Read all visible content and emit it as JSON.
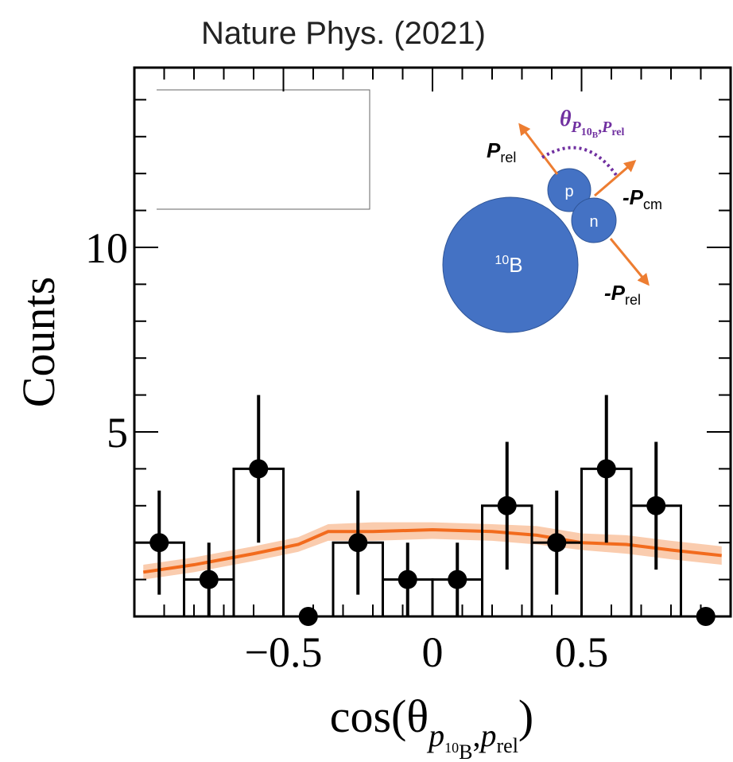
{
  "chart_data": {
    "type": "histogram",
    "title": "Nature Phys. (2021)",
    "y_label": "Counts",
    "x_label": {
      "prefix": "cos(θ",
      "sub1": "p",
      "sub1_sup": "10",
      "sub1_sub": "B",
      "sep": ",",
      "sub2": "p",
      "sub2_sub": "rel",
      "suffix": ")"
    },
    "bins": [
      -1,
      -0.8333,
      -0.6667,
      -0.5,
      -0.3333,
      -0.1667,
      0,
      0.1667,
      0.3333,
      0.5,
      0.6667,
      0.8333,
      1
    ],
    "values": [
      2,
      1,
      4,
      0,
      2,
      1,
      1,
      3,
      2,
      4,
      3,
      0
    ],
    "errors": [
      1.41,
      1,
      2,
      0,
      1.41,
      1,
      1,
      1.73,
      1.41,
      2,
      1.73,
      0
    ],
    "color": "#000000",
    "xlim": [
      -1,
      1
    ],
    "ylim": [
      0,
      14.87
    ],
    "xticks": [
      {
        "value": -0.5,
        "label": "−0.5"
      },
      0,
      0.5
    ],
    "yticks": [
      5,
      10
    ],
    "xminorticks": [
      -0.9,
      -0.8,
      -0.7,
      -0.6,
      -0.4,
      -0.3,
      -0.2,
      -0.1,
      0.1,
      0.2,
      0.3,
      0.4,
      0.6,
      0.7,
      0.8,
      0.9
    ],
    "yminorticks": [
      1,
      2,
      3,
      4,
      6,
      7,
      8,
      9,
      11,
      12,
      13,
      14
    ],
    "model": {
      "x": [
        -0.97,
        -0.8,
        -0.6,
        -0.45,
        -0.35,
        -0.2,
        0,
        0.2,
        0.35,
        0.5,
        0.65,
        0.8,
        0.97
      ],
      "values": [
        1.2,
        1.4,
        1.7,
        1.95,
        2.3,
        2.3,
        2.35,
        2.3,
        2.2,
        2.0,
        1.95,
        1.8,
        1.65
      ],
      "lower": [
        1.0,
        1.2,
        1.5,
        1.75,
        2.05,
        2.05,
        2.1,
        2.05,
        1.95,
        1.8,
        1.7,
        1.55,
        1.4
      ],
      "upper": [
        1.4,
        1.6,
        1.9,
        2.15,
        2.5,
        2.55,
        2.55,
        2.5,
        2.45,
        2.25,
        2.2,
        2.05,
        1.9
      ],
      "color": "#f26b1d",
      "band_color": "#f9c3a0"
    },
    "inset": {
      "nucleus": {
        "sup": "10",
        "main": "B"
      },
      "proton": "p",
      "neutron": "n",
      "p_rel": {
        "main": "P",
        "sub": "rel"
      },
      "neg_p_cm": {
        "main": "-P",
        "sub": "cm"
      },
      "neg_p_rel": {
        "main": "-P",
        "sub": "rel"
      },
      "angle": {
        "main": "θ",
        "sub1": "P",
        "sub1_sub": "10",
        "sub1_subsub": "B",
        "sep": ",",
        "sub2": "P",
        "sub2_sub": "rel"
      }
    }
  }
}
